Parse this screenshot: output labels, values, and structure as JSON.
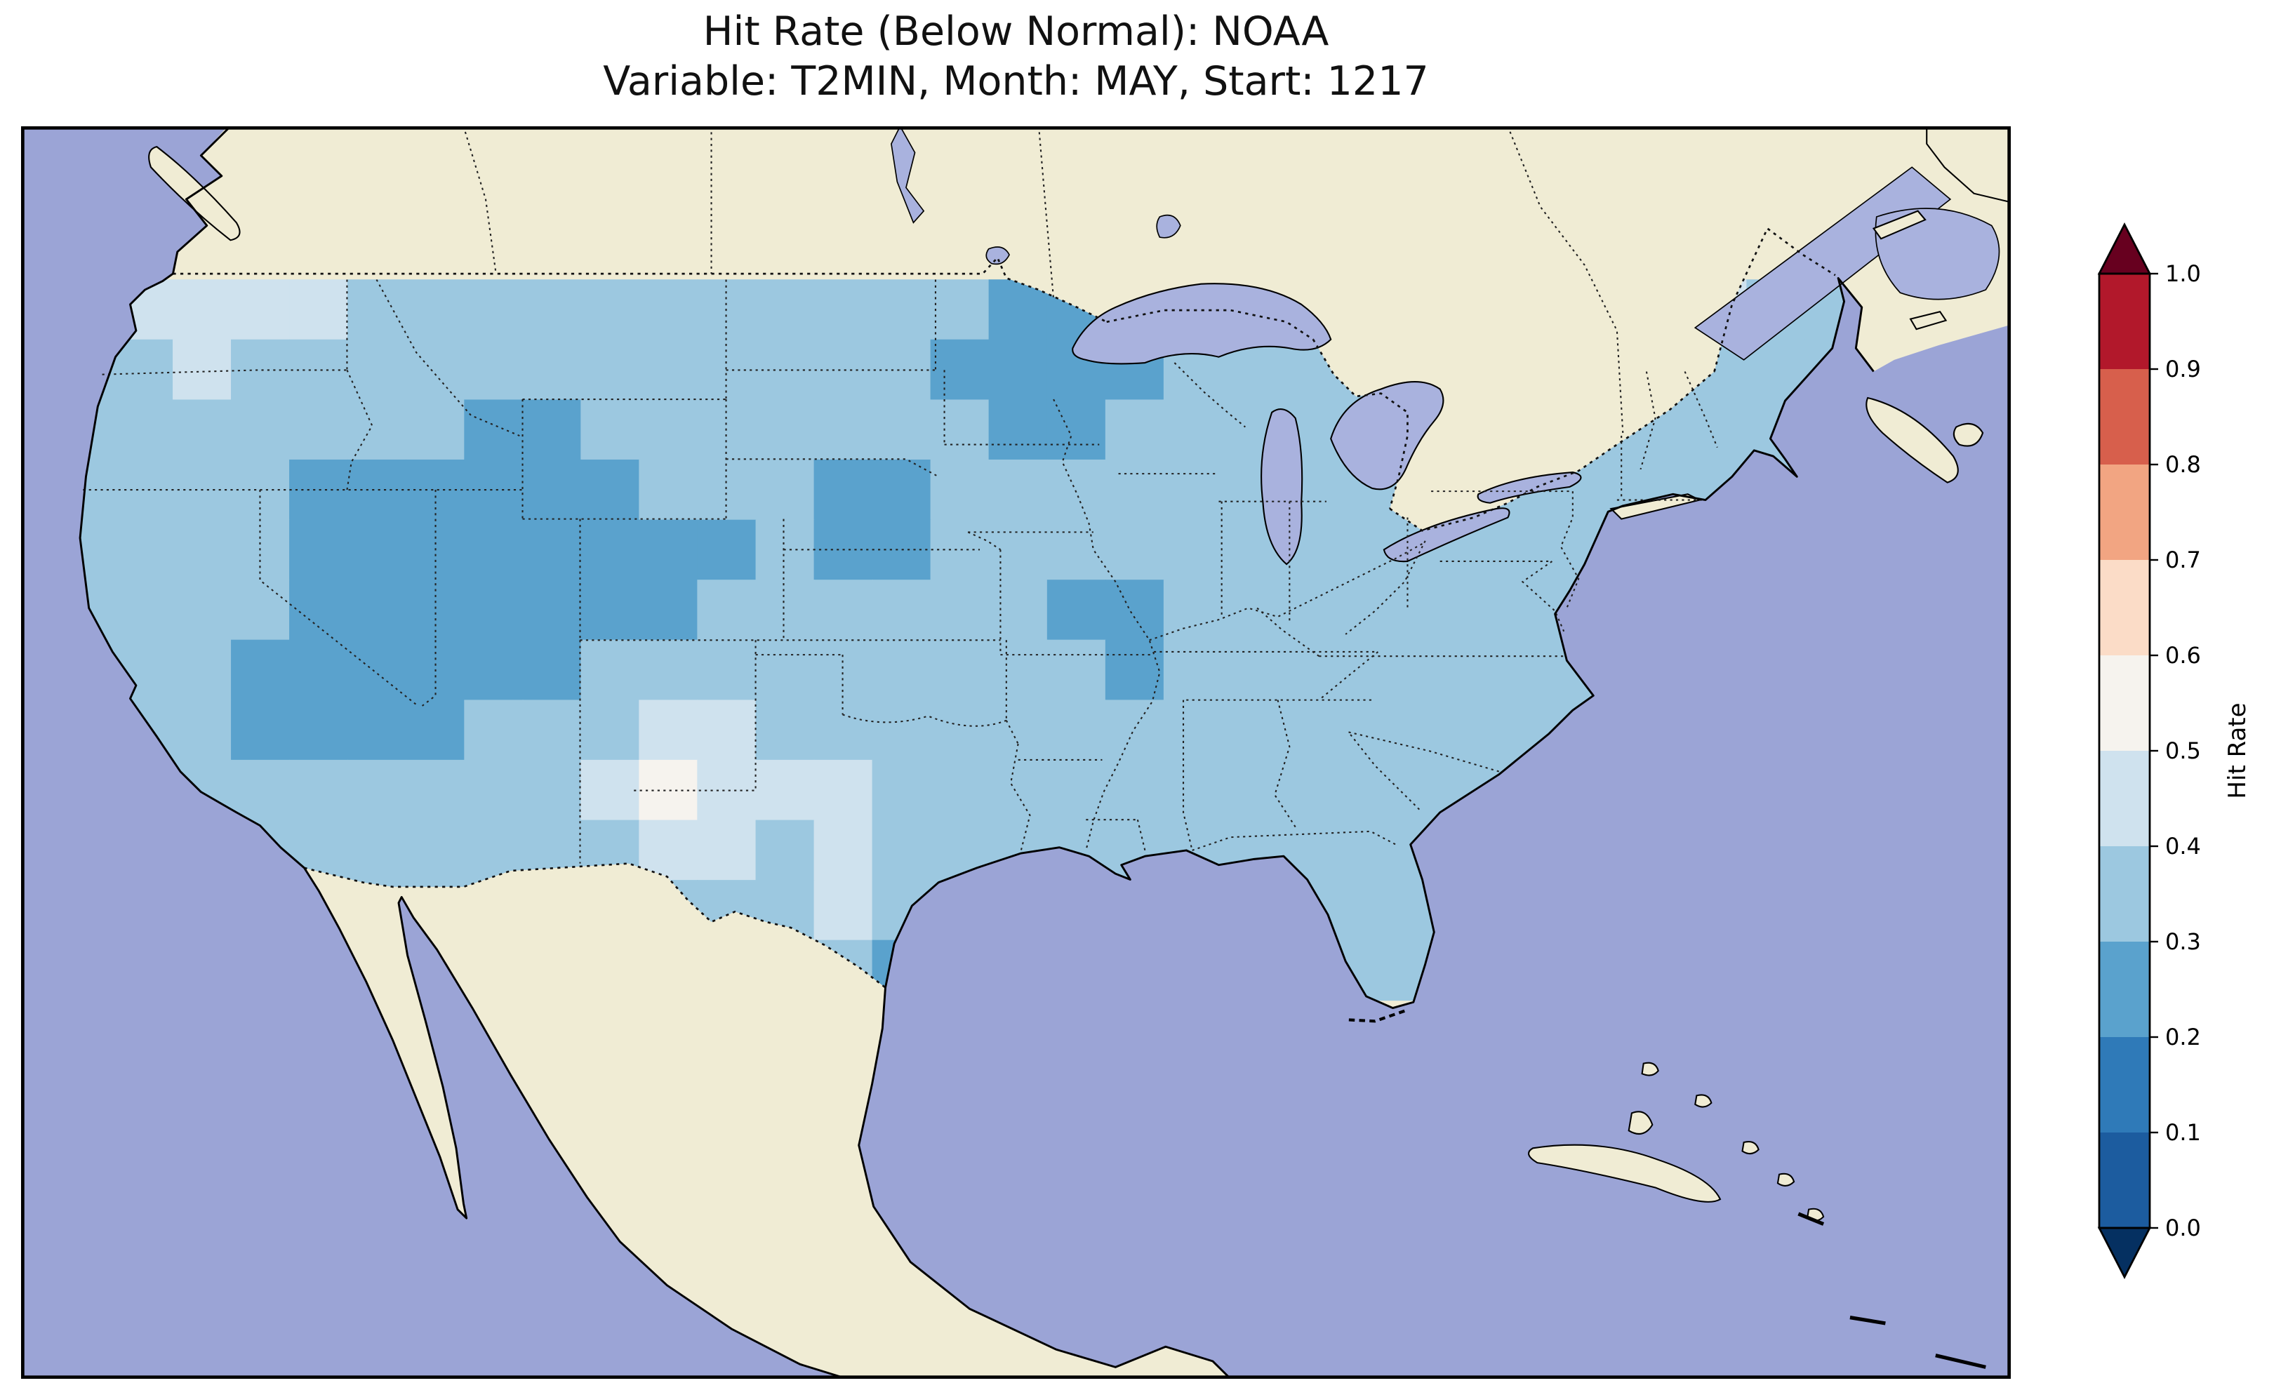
{
  "title": {
    "line1": "Hit Rate (Below Normal): NOAA",
    "line2": "Variable: T2MIN, Month: MAY, Start: 1217"
  },
  "colorbar": {
    "label": "Hit Rate",
    "ticks": [
      "0.0",
      "0.1",
      "0.2",
      "0.3",
      "0.4",
      "0.5",
      "0.6",
      "0.7",
      "0.8",
      "0.9",
      "1.0"
    ],
    "bin_colors_bottom_to_top": [
      "#1c5c9f",
      "#2f7ab8",
      "#5aa2cd",
      "#9cc8e0",
      "#cfe2ee",
      "#f6f3ee",
      "#fbdcc7",
      "#f2a582",
      "#d75f4c",
      "#b2182b"
    ],
    "under_color": "#053061",
    "over_color": "#67001f"
  },
  "map_colors": {
    "ocean": "#9ba4d6",
    "land": "#f0ecd4",
    "lake": "#a9b2de"
  },
  "chart_data": {
    "type": "heatmap",
    "title": "Hit Rate (Below Normal): NOAA",
    "subtitle": "Variable: T2MIN, Month: MAY, Start: 1217",
    "dataset": "NOAA",
    "metric": "Hit Rate (Below Normal)",
    "variable": "T2MIN",
    "month": "MAY",
    "start": "1217",
    "colorbar_label": "Hit Rate",
    "colorbar_ticks": [
      0.0,
      0.1,
      0.2,
      0.3,
      0.4,
      0.5,
      0.6,
      0.7,
      0.8,
      0.9,
      1.0
    ],
    "colorbar_range": [
      0.0,
      1.0
    ],
    "colormap": "RdBu_r, discrete 0.1 bins, arrow extensions both ends (blue = low, red = high)",
    "map_region": "Contiguous United States (gridded values shown only over CONUS)",
    "region_summary": [
      {
        "region": "Most of the contiguous U.S.",
        "hit_rate": "0.3-0.4"
      },
      {
        "region": "Great Basin / Four Corners (NV, UT, CO, AZ, NM) and Southern California",
        "hit_rate": "0.2-0.3"
      },
      {
        "region": "Northern Minnesota / northern Wisconsin",
        "hit_rate": "0.2-0.3"
      },
      {
        "region": "Nebraska / Kansas patch",
        "hit_rate": "0.2-0.3"
      },
      {
        "region": "Small patches in southern Missouri and Tennessee",
        "hit_rate": "0.2-0.3"
      },
      {
        "region": "West Texas",
        "hit_rate": "0.4-0.6 (palest area)"
      },
      {
        "region": "Coastal Washington / Pacific Northwest",
        "hit_rate": "0.4-0.5"
      }
    ],
    "grid": {
      "note": "Approximate hit-rate values read from the map shading; rows ordered north to south",
      "lon_min": -127,
      "lon_max": -65,
      "lat_min": 25,
      "lat_max": 49,
      "cell_size_deg": 2,
      "values": [
        [
          0.45,
          0.45,
          0.45,
          0.45,
          0.45,
          0.35,
          0.35,
          0.35,
          0.35,
          0.35,
          0.35,
          0.35,
          0.35,
          0.35,
          0.35,
          0.35,
          0.25,
          0.25,
          0.35,
          0.35,
          0.35,
          0.35,
          0.35,
          0.35,
          0.35,
          0.35,
          0.35,
          0.35,
          0.45,
          0.35,
          0.35
        ],
        [
          0.35,
          0.35,
          0.45,
          0.35,
          0.35,
          0.35,
          0.35,
          0.35,
          0.35,
          0.35,
          0.35,
          0.35,
          0.35,
          0.35,
          0.35,
          0.25,
          0.25,
          0.25,
          0.25,
          0.35,
          0.35,
          0.35,
          0.35,
          0.35,
          0.35,
          0.35,
          0.35,
          0.35,
          0.35,
          0.35,
          0.35
        ],
        [
          0.35,
          0.35,
          0.35,
          0.35,
          0.35,
          0.35,
          0.35,
          0.25,
          0.25,
          0.35,
          0.35,
          0.35,
          0.35,
          0.35,
          0.35,
          0.35,
          0.25,
          0.25,
          0.35,
          0.35,
          0.35,
          0.35,
          0.35,
          0.35,
          0.35,
          0.35,
          0.35,
          0.35,
          0.35,
          0.35,
          0.35
        ],
        [
          0.35,
          0.35,
          0.35,
          0.35,
          0.25,
          0.25,
          0.25,
          0.25,
          0.25,
          0.25,
          0.35,
          0.35,
          0.35,
          0.25,
          0.25,
          0.35,
          0.35,
          0.35,
          0.35,
          0.35,
          0.35,
          0.35,
          0.35,
          0.35,
          0.35,
          0.35,
          0.35,
          0.35,
          0.35,
          0.35,
          0.35
        ],
        [
          0.35,
          0.35,
          0.35,
          0.35,
          0.25,
          0.25,
          0.25,
          0.25,
          0.25,
          0.25,
          0.25,
          0.25,
          0.35,
          0.25,
          0.25,
          0.35,
          0.35,
          0.35,
          0.35,
          0.35,
          0.35,
          0.35,
          0.35,
          0.35,
          0.35,
          0.35,
          0.35,
          0.35,
          0.35,
          0.35,
          0.35
        ],
        [
          0.35,
          0.35,
          0.35,
          0.35,
          0.25,
          0.25,
          0.25,
          0.25,
          0.25,
          0.25,
          0.25,
          0.35,
          0.35,
          0.35,
          0.35,
          0.35,
          0.35,
          0.25,
          0.25,
          0.35,
          0.35,
          0.35,
          0.35,
          0.35,
          0.35,
          0.35,
          0.35,
          0.35,
          0.35,
          0.35,
          0.35
        ],
        [
          0.35,
          0.35,
          0.35,
          0.25,
          0.25,
          0.25,
          0.25,
          0.25,
          0.25,
          0.35,
          0.35,
          0.35,
          0.35,
          0.35,
          0.35,
          0.35,
          0.35,
          0.35,
          0.25,
          0.35,
          0.35,
          0.35,
          0.35,
          0.35,
          0.35,
          0.35,
          0.35,
          0.35,
          0.35,
          0.35,
          0.35
        ],
        [
          0.35,
          0.35,
          0.35,
          0.25,
          0.25,
          0.25,
          0.25,
          0.35,
          0.35,
          0.35,
          0.45,
          0.45,
          0.35,
          0.35,
          0.35,
          0.35,
          0.35,
          0.35,
          0.35,
          0.35,
          0.35,
          0.35,
          0.35,
          0.35,
          0.35,
          0.35,
          0.35,
          0.35,
          0.35,
          0.35,
          0.35
        ],
        [
          0.35,
          0.35,
          0.35,
          0.35,
          0.35,
          0.35,
          0.35,
          0.35,
          0.35,
          0.45,
          0.55,
          0.45,
          0.45,
          0.45,
          0.35,
          0.35,
          0.35,
          0.35,
          0.35,
          0.35,
          0.35,
          0.35,
          0.35,
          0.35,
          0.35,
          0.35,
          0.35,
          0.35,
          0.35,
          0.35,
          0.35
        ],
        [
          0.35,
          0.35,
          0.35,
          0.35,
          0.35,
          0.35,
          0.35,
          0.35,
          0.35,
          0.35,
          0.45,
          0.45,
          0.35,
          0.45,
          0.35,
          0.35,
          0.35,
          0.35,
          0.35,
          0.35,
          0.35,
          0.35,
          0.35,
          0.35,
          0.35,
          0.35,
          0.35,
          0.35,
          0.35,
          0.35,
          0.35
        ],
        [
          0.35,
          0.35,
          0.35,
          0.35,
          0.35,
          0.35,
          0.35,
          0.35,
          0.35,
          0.35,
          0.35,
          0.35,
          0.35,
          0.45,
          0.35,
          0.35,
          0.35,
          0.35,
          0.35,
          0.35,
          0.35,
          0.35,
          0.35,
          0.35,
          0.35,
          0.35,
          0.35,
          0.35,
          0.35,
          0.35,
          0.35
        ],
        [
          0.35,
          0.35,
          0.35,
          0.35,
          0.35,
          0.35,
          0.35,
          0.35,
          0.35,
          0.35,
          0.35,
          0.35,
          0.35,
          0.35,
          0.25,
          0.35,
          0.35,
          0.35,
          0.35,
          0.35,
          0.35,
          0.35,
          0.35,
          0.35,
          0.35,
          0.35,
          0.35,
          0.35,
          0.35,
          0.35,
          0.35
        ]
      ]
    }
  }
}
